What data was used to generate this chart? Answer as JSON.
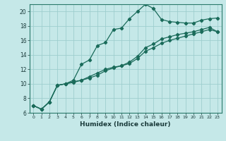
{
  "xlabel": "Humidex (Indice chaleur)",
  "background_color": "#c5e8e8",
  "grid_color": "#9ecece",
  "line_color": "#1a6b5a",
  "spine_color": "#2a7a6a",
  "tick_color": "#1a3a3a",
  "xlim": [
    -0.5,
    23.5
  ],
  "ylim": [
    6,
    21
  ],
  "yticks": [
    6,
    8,
    10,
    12,
    14,
    16,
    18,
    20
  ],
  "xticks": [
    0,
    1,
    2,
    3,
    4,
    5,
    6,
    7,
    8,
    9,
    10,
    11,
    12,
    13,
    14,
    15,
    16,
    17,
    18,
    19,
    20,
    21,
    22,
    23
  ],
  "series1_x": [
    0,
    1,
    2,
    3,
    4,
    5,
    6,
    7,
    8,
    9,
    10,
    11,
    12,
    13,
    14,
    15,
    16,
    17,
    18,
    19,
    20,
    21,
    22,
    23
  ],
  "series1_y": [
    7.0,
    6.5,
    7.5,
    9.8,
    10.0,
    10.5,
    12.7,
    13.3,
    15.3,
    15.7,
    17.5,
    17.7,
    19.0,
    20.0,
    21.0,
    20.4,
    18.9,
    18.6,
    18.5,
    18.4,
    18.4,
    18.8,
    19.0,
    19.1
  ],
  "series2_x": [
    0,
    1,
    2,
    3,
    4,
    5,
    6,
    7,
    8,
    9,
    10,
    11,
    12,
    13,
    14,
    15,
    16,
    17,
    18,
    19,
    20,
    21,
    22,
    23
  ],
  "series2_y": [
    7.0,
    6.5,
    7.5,
    9.8,
    10.0,
    10.3,
    10.5,
    11.0,
    11.5,
    12.0,
    12.3,
    12.5,
    13.0,
    13.8,
    15.0,
    15.5,
    16.2,
    16.5,
    16.8,
    17.0,
    17.2,
    17.5,
    17.8,
    17.2
  ],
  "series3_x": [
    0,
    1,
    2,
    3,
    4,
    5,
    6,
    7,
    8,
    9,
    10,
    11,
    12,
    13,
    14,
    15,
    16,
    17,
    18,
    19,
    20,
    21,
    22,
    23
  ],
  "series3_y": [
    7.0,
    6.5,
    7.5,
    9.8,
    10.0,
    10.2,
    10.5,
    10.8,
    11.2,
    11.8,
    12.2,
    12.5,
    12.8,
    13.5,
    14.5,
    15.0,
    15.6,
    16.0,
    16.3,
    16.6,
    16.9,
    17.2,
    17.5,
    17.2
  ]
}
